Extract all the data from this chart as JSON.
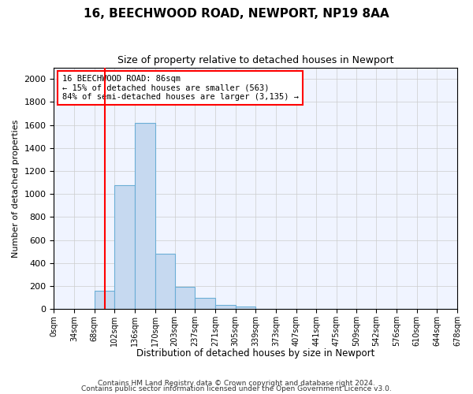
{
  "title1": "16, BEECHWOOD ROAD, NEWPORT, NP19 8AA",
  "title2": "Size of property relative to detached houses in Newport",
  "xlabel": "Distribution of detached houses by size in Newport",
  "ylabel": "Number of detached properties",
  "bin_edges": [
    0,
    34,
    68,
    102,
    136,
    170,
    203,
    237,
    271,
    305,
    339,
    373,
    407,
    441,
    475,
    509,
    542,
    576,
    610,
    644,
    678
  ],
  "bin_labels": [
    "0sqm",
    "34sqm",
    "68sqm",
    "102sqm",
    "136sqm",
    "170sqm",
    "203sqm",
    "237sqm",
    "271sqm",
    "305sqm",
    "339sqm",
    "373sqm",
    "407sqm",
    "441sqm",
    "475sqm",
    "509sqm",
    "542sqm",
    "576sqm",
    "610sqm",
    "644sqm",
    "678sqm"
  ],
  "counts": [
    0,
    0,
    160,
    1080,
    1620,
    480,
    195,
    100,
    35,
    20,
    0,
    0,
    0,
    0,
    0,
    0,
    0,
    0,
    0,
    0
  ],
  "bar_color": "#c6d9f0",
  "bar_edge_color": "#6baed6",
  "vline_x": 86,
  "vline_color": "red",
  "ylim": [
    0,
    2100
  ],
  "yticks": [
    0,
    200,
    400,
    600,
    800,
    1000,
    1200,
    1400,
    1600,
    1800,
    2000
  ],
  "annotation_text": "16 BEECHWOOD ROAD: 86sqm\n← 15% of detached houses are smaller (563)\n84% of semi-detached houses are larger (3,135) →",
  "annotation_box_color": "white",
  "annotation_box_edge": "red",
  "footer1": "Contains HM Land Registry data © Crown copyright and database right 2024.",
  "footer2": "Contains public sector information licensed under the Open Government Licence v3.0.",
  "bg_color": "#ffffff",
  "plot_bg_color": "#f0f4ff"
}
